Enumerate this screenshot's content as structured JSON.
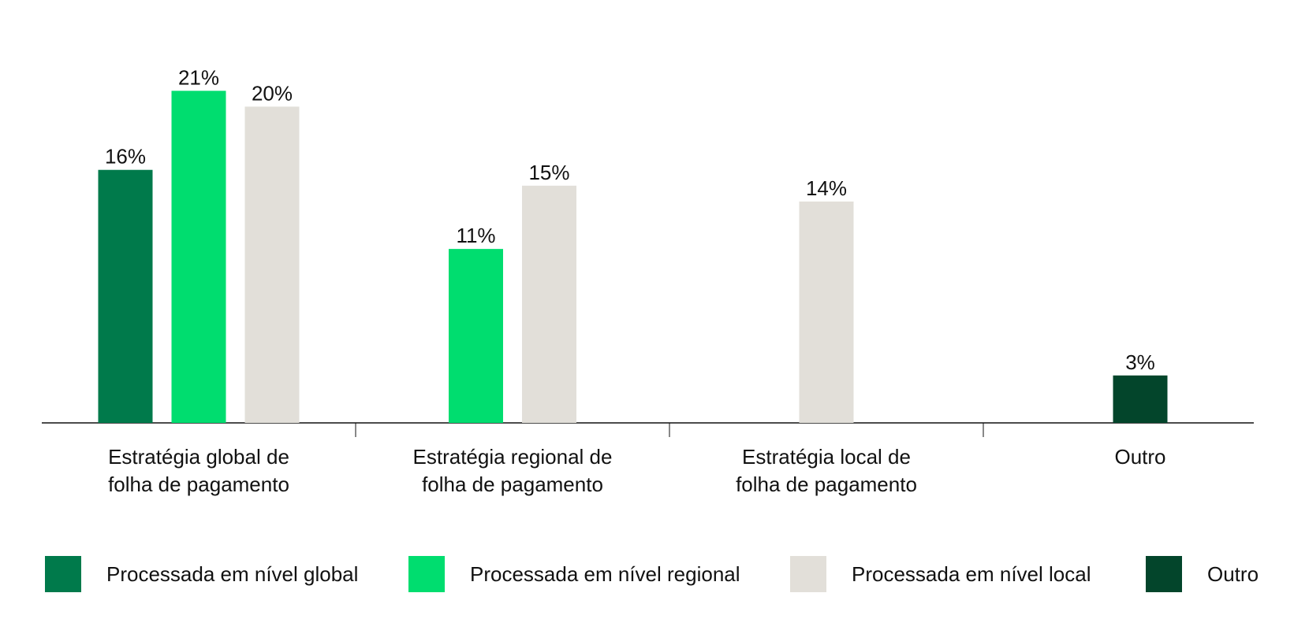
{
  "chart_data": {
    "type": "bar",
    "categories": [
      [
        "Estratégia global de",
        "folha de pagamento"
      ],
      [
        "Estratégia regional de",
        "folha de pagamento"
      ],
      [
        "Estratégia local de",
        "folha de pagamento"
      ],
      [
        "Outro"
      ]
    ],
    "series": [
      {
        "name": "Processada em nível global",
        "color": "#007a4b",
        "values": [
          16,
          null,
          null,
          null
        ]
      },
      {
        "name": "Processada em nível regional",
        "color": "#00dd6f",
        "values": [
          21,
          11,
          null,
          null
        ]
      },
      {
        "name": "Processada em nível local",
        "color": "#e2dfd9",
        "values": [
          20,
          15,
          14,
          null
        ]
      },
      {
        "name": "Outro",
        "color": "#03452b",
        "values": [
          null,
          null,
          null,
          3
        ]
      }
    ],
    "value_suffix": "%",
    "ylim": [
      0,
      25
    ],
    "grid": false,
    "legend_position": "bottom"
  }
}
